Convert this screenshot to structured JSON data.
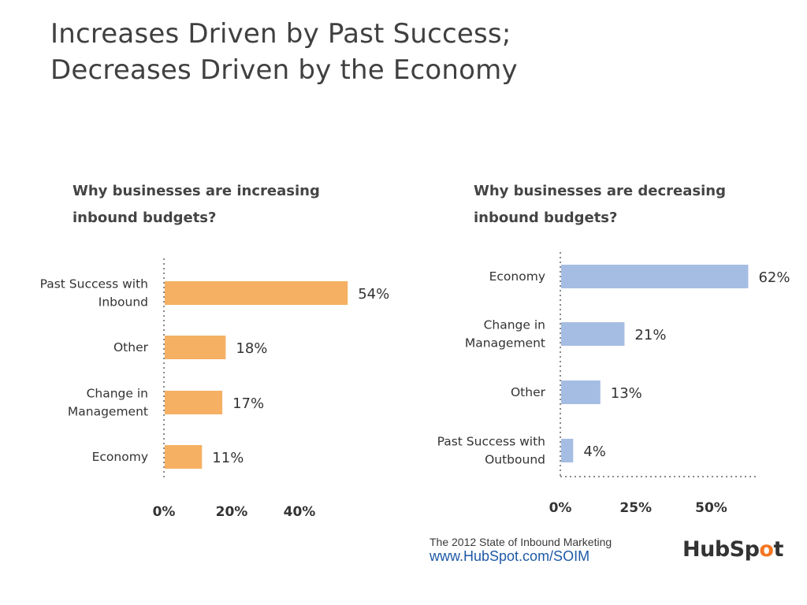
{
  "slide": {
    "title_lines": [
      "Increases Driven by Past Success;",
      "Decreases Driven by the Economy"
    ]
  },
  "chart_data": [
    {
      "type": "bar",
      "orientation": "horizontal",
      "title_lines": [
        "Why businesses are increasing",
        "inbound budgets?"
      ],
      "categories": [
        [
          "Past Success with",
          "Inbound"
        ],
        [
          "Other"
        ],
        [
          "Change in",
          "Management"
        ],
        [
          "Economy"
        ]
      ],
      "values": [
        54,
        18,
        17,
        11
      ],
      "value_labels": [
        "54%",
        "18%",
        "17%",
        "11%"
      ],
      "xlim": [
        0,
        50
      ],
      "ticks": [
        0,
        20,
        40
      ],
      "tick_labels": [
        "0%",
        "20%",
        "40%"
      ],
      "bar_color": "#f5b063",
      "grid": false
    },
    {
      "type": "bar",
      "orientation": "horizontal",
      "title_lines": [
        "Why businesses are decreasing",
        "inbound budgets?"
      ],
      "categories": [
        [
          "Economy"
        ],
        [
          "Change in",
          "Management"
        ],
        [
          "Other"
        ],
        [
          "Past Success with",
          "Outbound"
        ]
      ],
      "values": [
        62,
        21,
        13,
        4
      ],
      "value_labels": [
        "62%",
        "21%",
        "13%",
        "4%"
      ],
      "xlim": [
        0,
        70
      ],
      "ticks": [
        0,
        25,
        50
      ],
      "tick_labels": [
        "0%",
        "25%",
        "50%"
      ],
      "bar_color": "#a6bde3",
      "grid": false
    }
  ],
  "source": {
    "line1": "The 2012 State of Inbound Marketing",
    "line2": "www.HubSpot.com/SOIM"
  },
  "logo": {
    "text": "HubSpot",
    "accent_color": "#f47622"
  }
}
